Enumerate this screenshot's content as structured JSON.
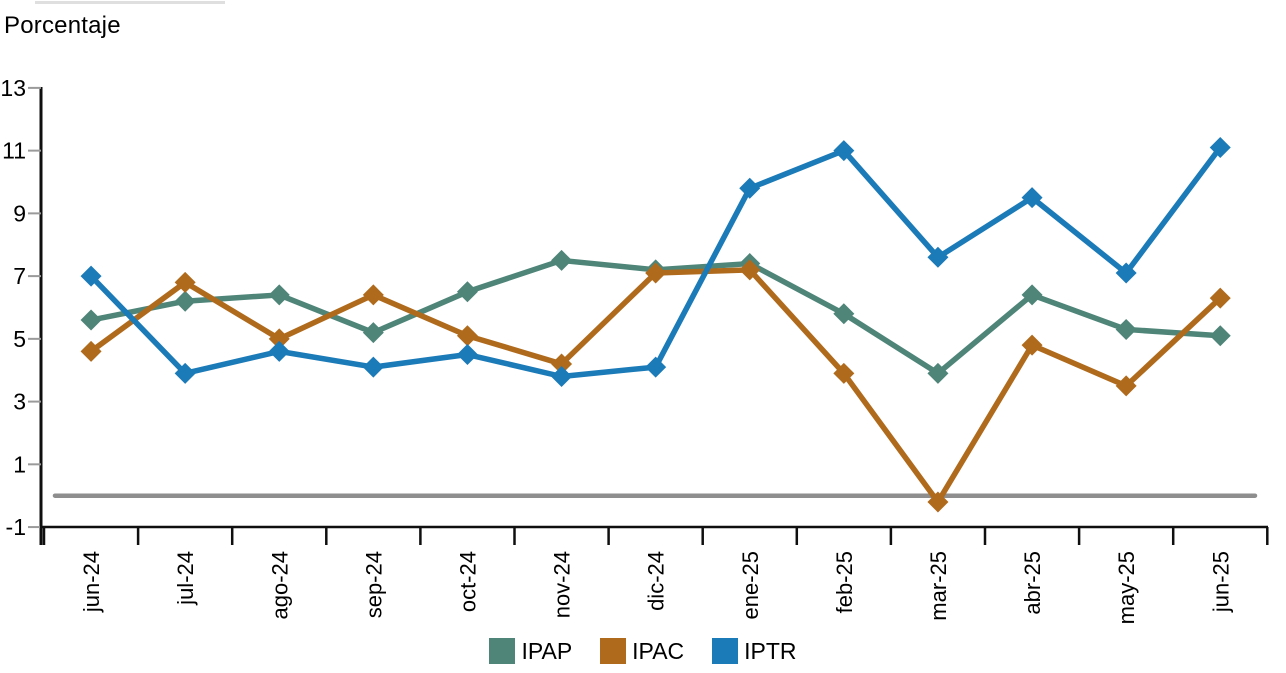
{
  "title": "Porcentaje",
  "chart_data": {
    "type": "line",
    "title": "Porcentaje",
    "ylabel": "Porcentaje",
    "xlabel": "",
    "categories": [
      "jun-24",
      "jul-24",
      "ago-24",
      "sep-24",
      "oct-24",
      "nov-24",
      "dic-24",
      "ene-25",
      "feb-25",
      "mar-25",
      "abr-25",
      "may-25",
      "jun-25"
    ],
    "series": [
      {
        "name": "IPAP",
        "color": "#4E8578",
        "values": [
          5.6,
          6.2,
          6.4,
          5.2,
          6.5,
          7.5,
          7.2,
          7.4,
          5.8,
          3.9,
          6.4,
          5.3,
          5.1
        ]
      },
      {
        "name": "IPAC",
        "color": "#B06A1C",
        "values": [
          4.6,
          6.8,
          5.0,
          6.4,
          5.1,
          4.2,
          7.1,
          7.2,
          3.9,
          -0.2,
          4.8,
          3.5,
          6.3
        ]
      },
      {
        "name": "IPTR",
        "color": "#1B7AB8",
        "values": [
          7.0,
          3.9,
          4.6,
          4.1,
          4.5,
          3.8,
          4.1,
          9.8,
          11.0,
          7.6,
          9.5,
          7.1,
          11.1
        ]
      }
    ],
    "ylim": [
      -1,
      13
    ],
    "yticks": [
      13,
      11,
      9,
      7,
      5,
      3,
      1,
      -1
    ],
    "reference_line": 0,
    "grid": false,
    "marker": "diamond",
    "legend_position": "bottom"
  },
  "colors": {
    "axis": "#0F0F0F",
    "y_tick": "#9A9A9A",
    "reference_line": "#8E8E8E",
    "text": "#000000",
    "background": "#FFFFFF"
  }
}
